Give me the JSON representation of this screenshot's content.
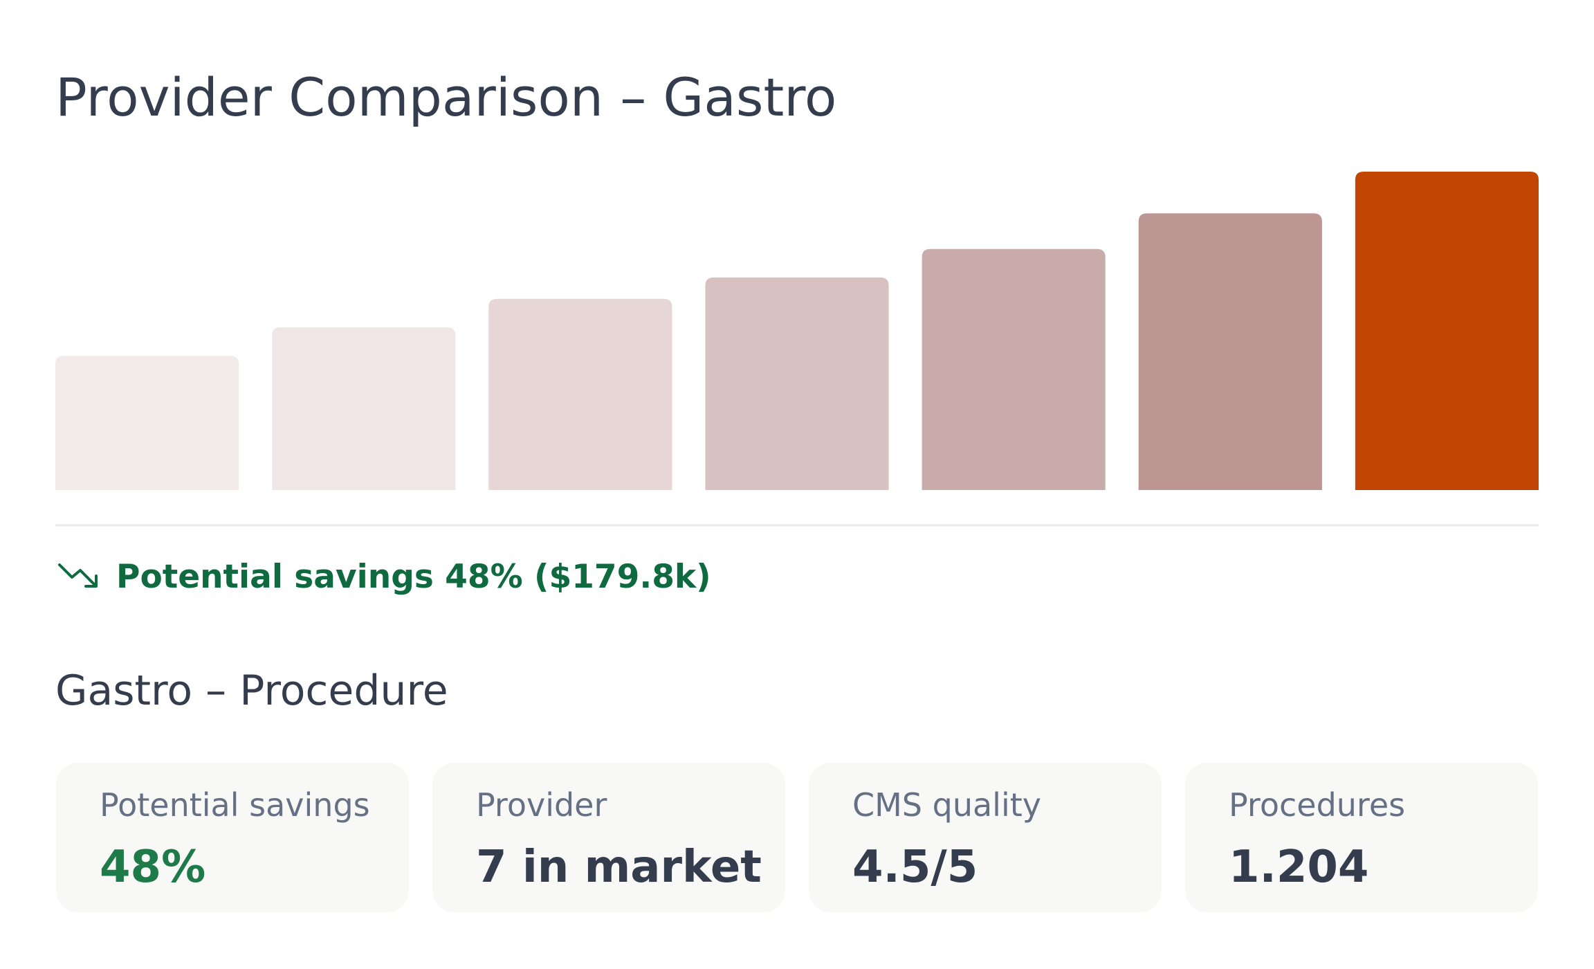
{
  "title": "Provider Comparison – Gastro",
  "chart_data": {
    "type": "bar",
    "values": [
      132,
      160,
      188,
      209,
      237,
      272,
      313
    ],
    "colors": [
      "#f3eaea",
      "#f1e6e6",
      "#e6d6d6",
      "#d8c1c1",
      "#c9aca9",
      "#bd9593",
      "#c24503"
    ]
  },
  "savings_note": "Potential savings 48% ($179.8k)",
  "section_title": "Gastro – Procedure",
  "cards": [
    {
      "label": "Potential savings",
      "value": "48%"
    },
    {
      "label": "Provider",
      "value": "7 in market"
    },
    {
      "label": "CMS quality",
      "value": "4.5/5"
    },
    {
      "label": "Procedures",
      "value": "1.204"
    }
  ]
}
